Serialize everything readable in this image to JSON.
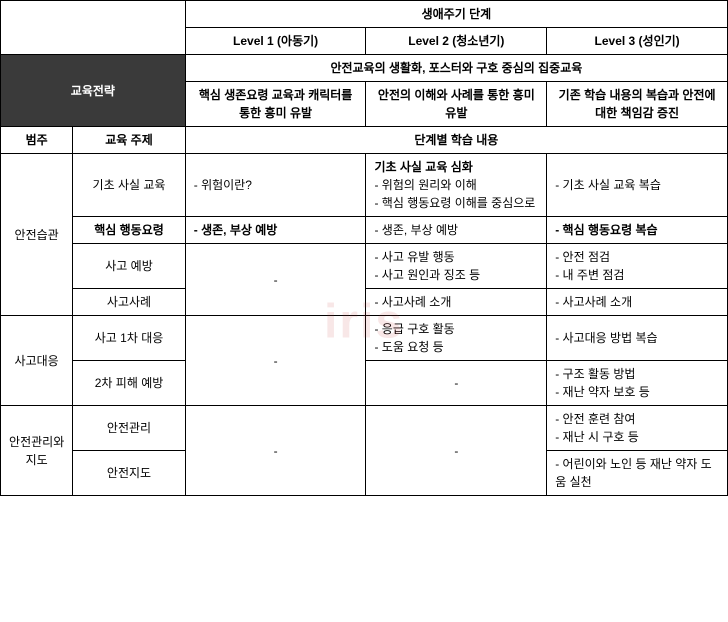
{
  "watermark": "iris",
  "headers": {
    "corner_blank": "",
    "lifecycle": "생애주기 단계",
    "level1": "Level 1 (아동기)",
    "level2": "Level 2 (청소년기)",
    "level3": "Level 3 (성인기)",
    "strategy": "교육전략",
    "strategy_common": "안전교육의 생활화, 포스터와 구호 중심의 집중교육",
    "strategy_l1": "핵심 생존요령 교육과 캐릭터를 통한 흥미 유발",
    "strategy_l2": "안전의 이해와 사례를 통한 흥미 유발",
    "strategy_l3": "기존 학습 내용의 복습과 안전에 대한 책임감 증진",
    "category": "범주",
    "topic": "교육 주제",
    "content_header": "단계별 학습 내용"
  },
  "categories": {
    "habit": "안전습관",
    "response": "사고대응",
    "management": "안전관리와 지도"
  },
  "topics": {
    "basic": "기초 사실 교육",
    "core": "핵심 행동요령",
    "prevention": "사고 예방",
    "cases": "사고사례",
    "response1": "사고 1차 대응",
    "prevention2": "2차 피해 예방",
    "mgmt": "안전관리",
    "guide": "안전지도"
  },
  "content": {
    "basic_l1": "- 위험이란?",
    "basic_l2_title": "기초 사실 교육 심화",
    "basic_l2_1": "- 위험의 원리와 이해",
    "basic_l2_2": "- 핵심 행동요령 이해를 중심으로",
    "basic_l3": "- 기초 사실 교육 복습",
    "core_l1": "- 생존, 부상 예방",
    "core_l2": "- 생존, 부상 예방",
    "core_l3": "- 핵심 행동요령 복습",
    "prev_l1": "-",
    "prev_l2_1": "- 사고 유발 행동",
    "prev_l2_2": "- 사고 원인과 징조 등",
    "prev_l3_1": "- 안전 점검",
    "prev_l3_2": "- 내 주변 점검",
    "case_l2": "- 사고사례 소개",
    "case_l3": "- 사고사례 소개",
    "resp1_l1": "-",
    "resp1_l2_1": "- 응급 구호 활동",
    "resp1_l2_2": "- 도움 요청 등",
    "resp1_l3": "- 사고대응 방법 복습",
    "prev2_l2": "-",
    "prev2_l3_1": "- 구조 활동 방법",
    "prev2_l3_2": "- 재난 약자 보호 등",
    "mgmt_l1": "-",
    "mgmt_l2": "-",
    "mgmt_l3_1": "- 안전 훈련 참여",
    "mgmt_l3_2": "- 재난 시 구호 등",
    "guide_l3": "- 어린이와 노인 등 재난 약자 도움 실천"
  }
}
